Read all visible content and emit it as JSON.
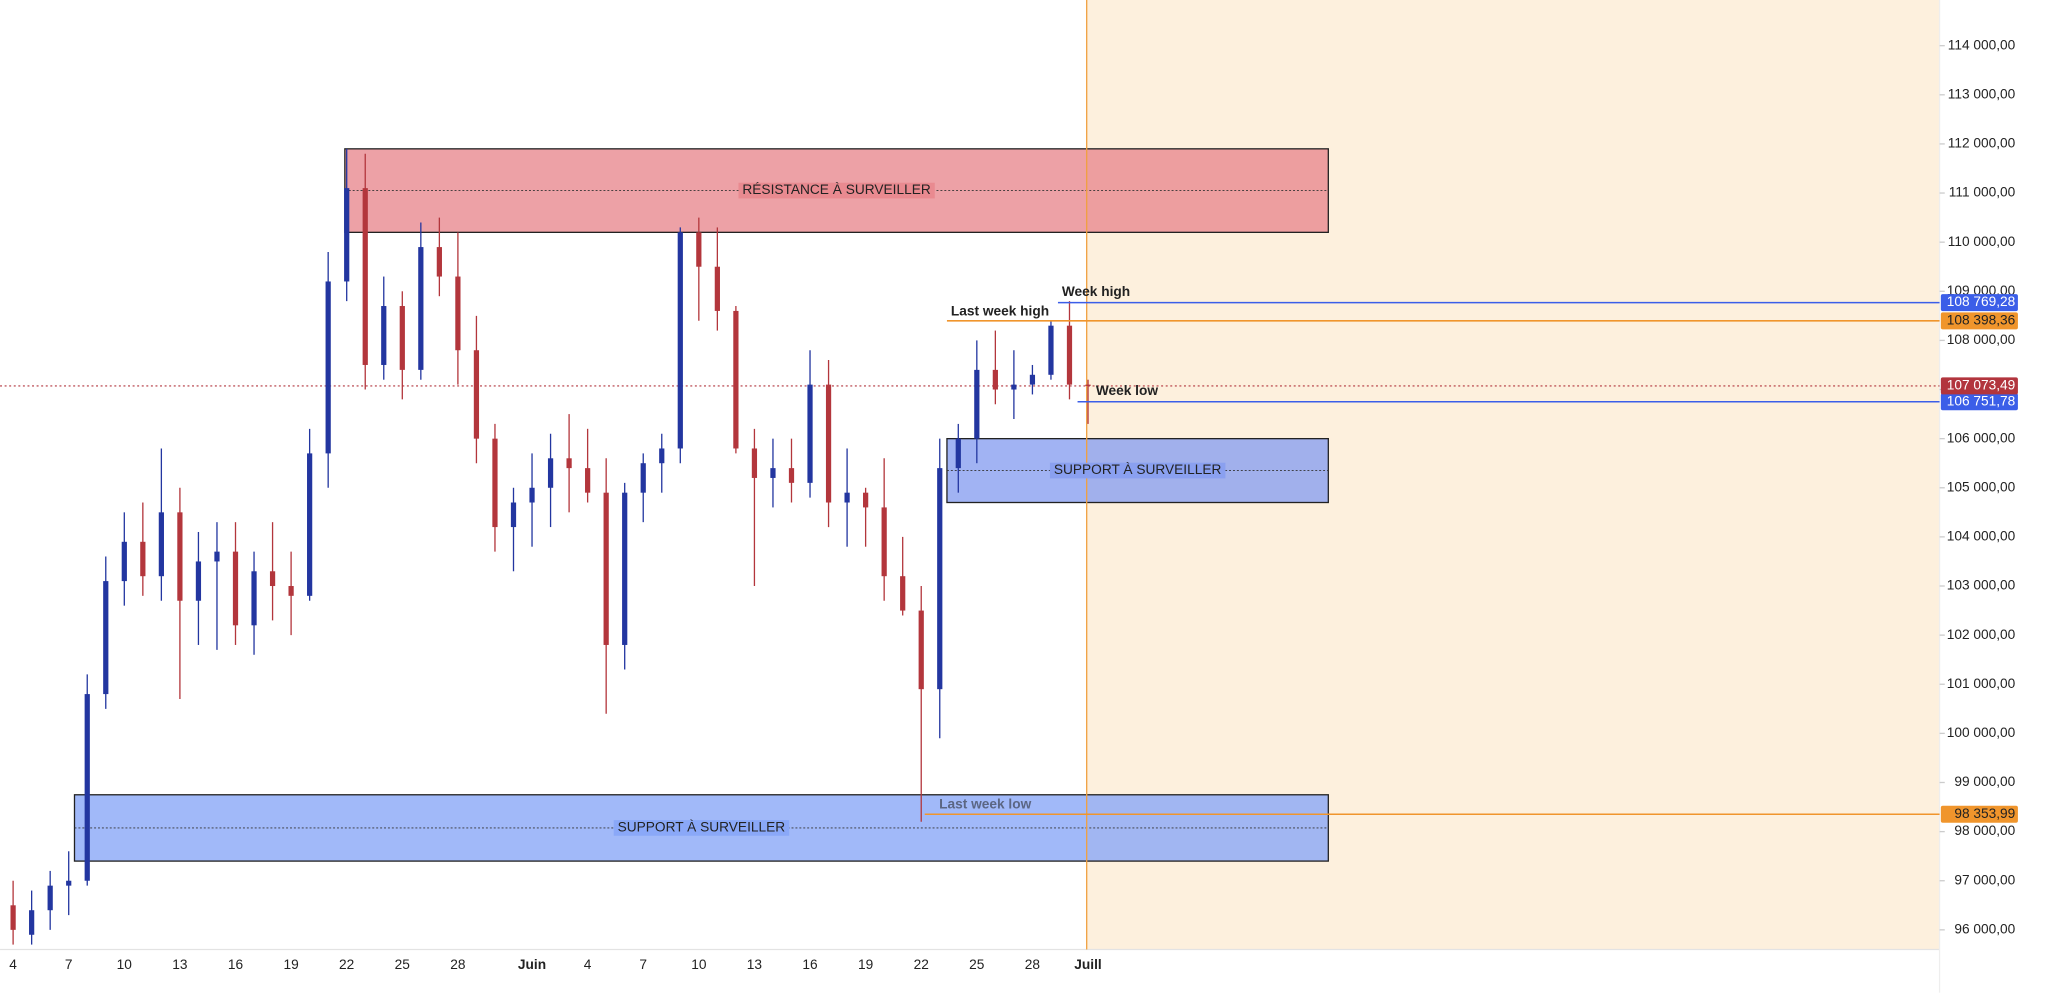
{
  "chart_data": {
    "type": "candlestick",
    "categories": [
      "4",
      null,
      null,
      "7",
      null,
      null,
      "10",
      null,
      null,
      "13",
      null,
      null,
      "16",
      null,
      null,
      "19",
      null,
      null,
      "22",
      null,
      null,
      "25",
      null,
      null,
      "28",
      null,
      null,
      null,
      "Juin",
      null,
      null,
      "4",
      null,
      null,
      "7",
      null,
      null,
      "10",
      null,
      null,
      "13",
      null,
      null,
      "16",
      null,
      null,
      "19",
      null,
      null,
      "22",
      null,
      null,
      "25",
      null,
      null,
      "28",
      null,
      null,
      "Juill"
    ],
    "open": [
      96500,
      95900,
      96400,
      96900,
      97000,
      100800,
      103100,
      103900,
      103200,
      104500,
      102700,
      103500,
      103700,
      102200,
      103300,
      103000,
      102800,
      105700,
      109200,
      111100,
      107500,
      108700,
      107400,
      109900,
      109300,
      107800,
      106000,
      104200,
      104700,
      105000,
      105600,
      105400,
      104900,
      101800,
      104900,
      105500,
      105800,
      110200,
      109500,
      108600,
      105800,
      105200,
      105400,
      105100,
      107100,
      104700,
      104900,
      104600,
      103200,
      102500,
      100900,
      105400,
      106000,
      107400,
      107000,
      107100,
      107300,
      108300,
      107100
    ],
    "high": [
      97000,
      96800,
      97200,
      97600,
      101200,
      103600,
      104500,
      104700,
      105800,
      105000,
      104100,
      104300,
      104300,
      103700,
      104300,
      103700,
      106200,
      109800,
      111900,
      111800,
      109300,
      109000,
      110400,
      110500,
      110200,
      108500,
      106300,
      105000,
      105700,
      106100,
      106500,
      106200,
      105600,
      105100,
      105700,
      106100,
      110300,
      110500,
      110300,
      108700,
      106200,
      106000,
      106000,
      107800,
      107600,
      105800,
      105000,
      105600,
      104000,
      103000,
      106000,
      106300,
      108000,
      108200,
      107800,
      107500,
      108400,
      108800,
      107200
    ],
    "low": [
      95700,
      95700,
      96000,
      96300,
      96900,
      100500,
      102600,
      102800,
      102700,
      100700,
      101800,
      101700,
      101800,
      101600,
      102300,
      102000,
      102700,
      105000,
      108800,
      107000,
      107200,
      106800,
      107200,
      108900,
      107100,
      105500,
      103700,
      103300,
      103800,
      104200,
      104500,
      104700,
      100400,
      101300,
      104300,
      104900,
      105500,
      108400,
      108200,
      105700,
      103000,
      104600,
      104700,
      104800,
      104200,
      103800,
      103800,
      102700,
      102400,
      98200,
      99900,
      104900,
      105500,
      106700,
      106400,
      106900,
      107200,
      106800,
      106300
    ],
    "close": [
      96000,
      96400,
      96900,
      97000,
      100800,
      103100,
      103900,
      103200,
      104500,
      102700,
      103500,
      103700,
      102200,
      103300,
      103000,
      102800,
      105700,
      109200,
      111100,
      107500,
      108700,
      107400,
      109900,
      109300,
      107800,
      106000,
      104200,
      104700,
      105000,
      105600,
      105400,
      104900,
      101800,
      104900,
      105500,
      105800,
      110200,
      109500,
      108600,
      105800,
      105200,
      105400,
      105100,
      107100,
      104700,
      104900,
      104600,
      103200,
      102500,
      100900,
      105400,
      106000,
      107400,
      107000,
      107100,
      107300,
      108300,
      107100,
      107073.49
    ],
    "up_color": "#2336a0",
    "down_color": "#b3363c",
    "ylim": [
      95600,
      114930
    ],
    "yticks": [
      {
        "value": 96000,
        "label": "96 000,00"
      },
      {
        "value": 97000,
        "label": "97 000,00"
      },
      {
        "value": 98000,
        "label": "98 000,00"
      },
      {
        "value": 99000,
        "label": "99 000,00"
      },
      {
        "value": 100000,
        "label": "100 000,00"
      },
      {
        "value": 101000,
        "label": "101 000,00"
      },
      {
        "value": 102000,
        "label": "102 000,00"
      },
      {
        "value": 103000,
        "label": "103 000,00"
      },
      {
        "value": 104000,
        "label": "104 000,00"
      },
      {
        "value": 105000,
        "label": "105 000,00"
      },
      {
        "value": 106000,
        "label": "106 000,00"
      },
      {
        "value": 107000,
        "label": "107 000,00"
      },
      {
        "value": 108000,
        "label": "108 000,00"
      },
      {
        "value": 109000,
        "label": "109 000,00"
      },
      {
        "value": 110000,
        "label": "110 000,00"
      },
      {
        "value": 111000,
        "label": "111 000,00"
      },
      {
        "value": 112000,
        "label": "112 000,00"
      },
      {
        "value": 113000,
        "label": "113 000,00"
      },
      {
        "value": 114000,
        "label": "114 000,00"
      }
    ],
    "zones": [
      {
        "name": "RÉSISTANCE À SURVEILLER",
        "low": 110200,
        "high": 111900,
        "color": "#e98a90"
      },
      {
        "name": "SUPPORT À SURVEILLER",
        "low": 104700,
        "high": 106000,
        "color": "#8aa0f0"
      },
      {
        "name": "SUPPORT À SURVEILLER",
        "low": 97400,
        "high": 98750,
        "color": "#8aa8f8"
      }
    ],
    "levels": [
      {
        "name": "Week high",
        "value": 108769.28,
        "value_label": "108 769,28",
        "color": "#3b5ee8"
      },
      {
        "name": "Last week high",
        "value": 108398.36,
        "value_label": "108 398,36",
        "color": "#f0952c"
      },
      {
        "name": "Week low",
        "value": 106751.78,
        "value_label": "106 751,78",
        "color": "#3b5ee8"
      },
      {
        "name": "Last week low",
        "value": 98353.99,
        "value_label": "98 353,99",
        "color": "#f0952c"
      }
    ],
    "last_price": {
      "value": 107073.49,
      "label": "107 073,49",
      "color": "#b2353d"
    }
  }
}
